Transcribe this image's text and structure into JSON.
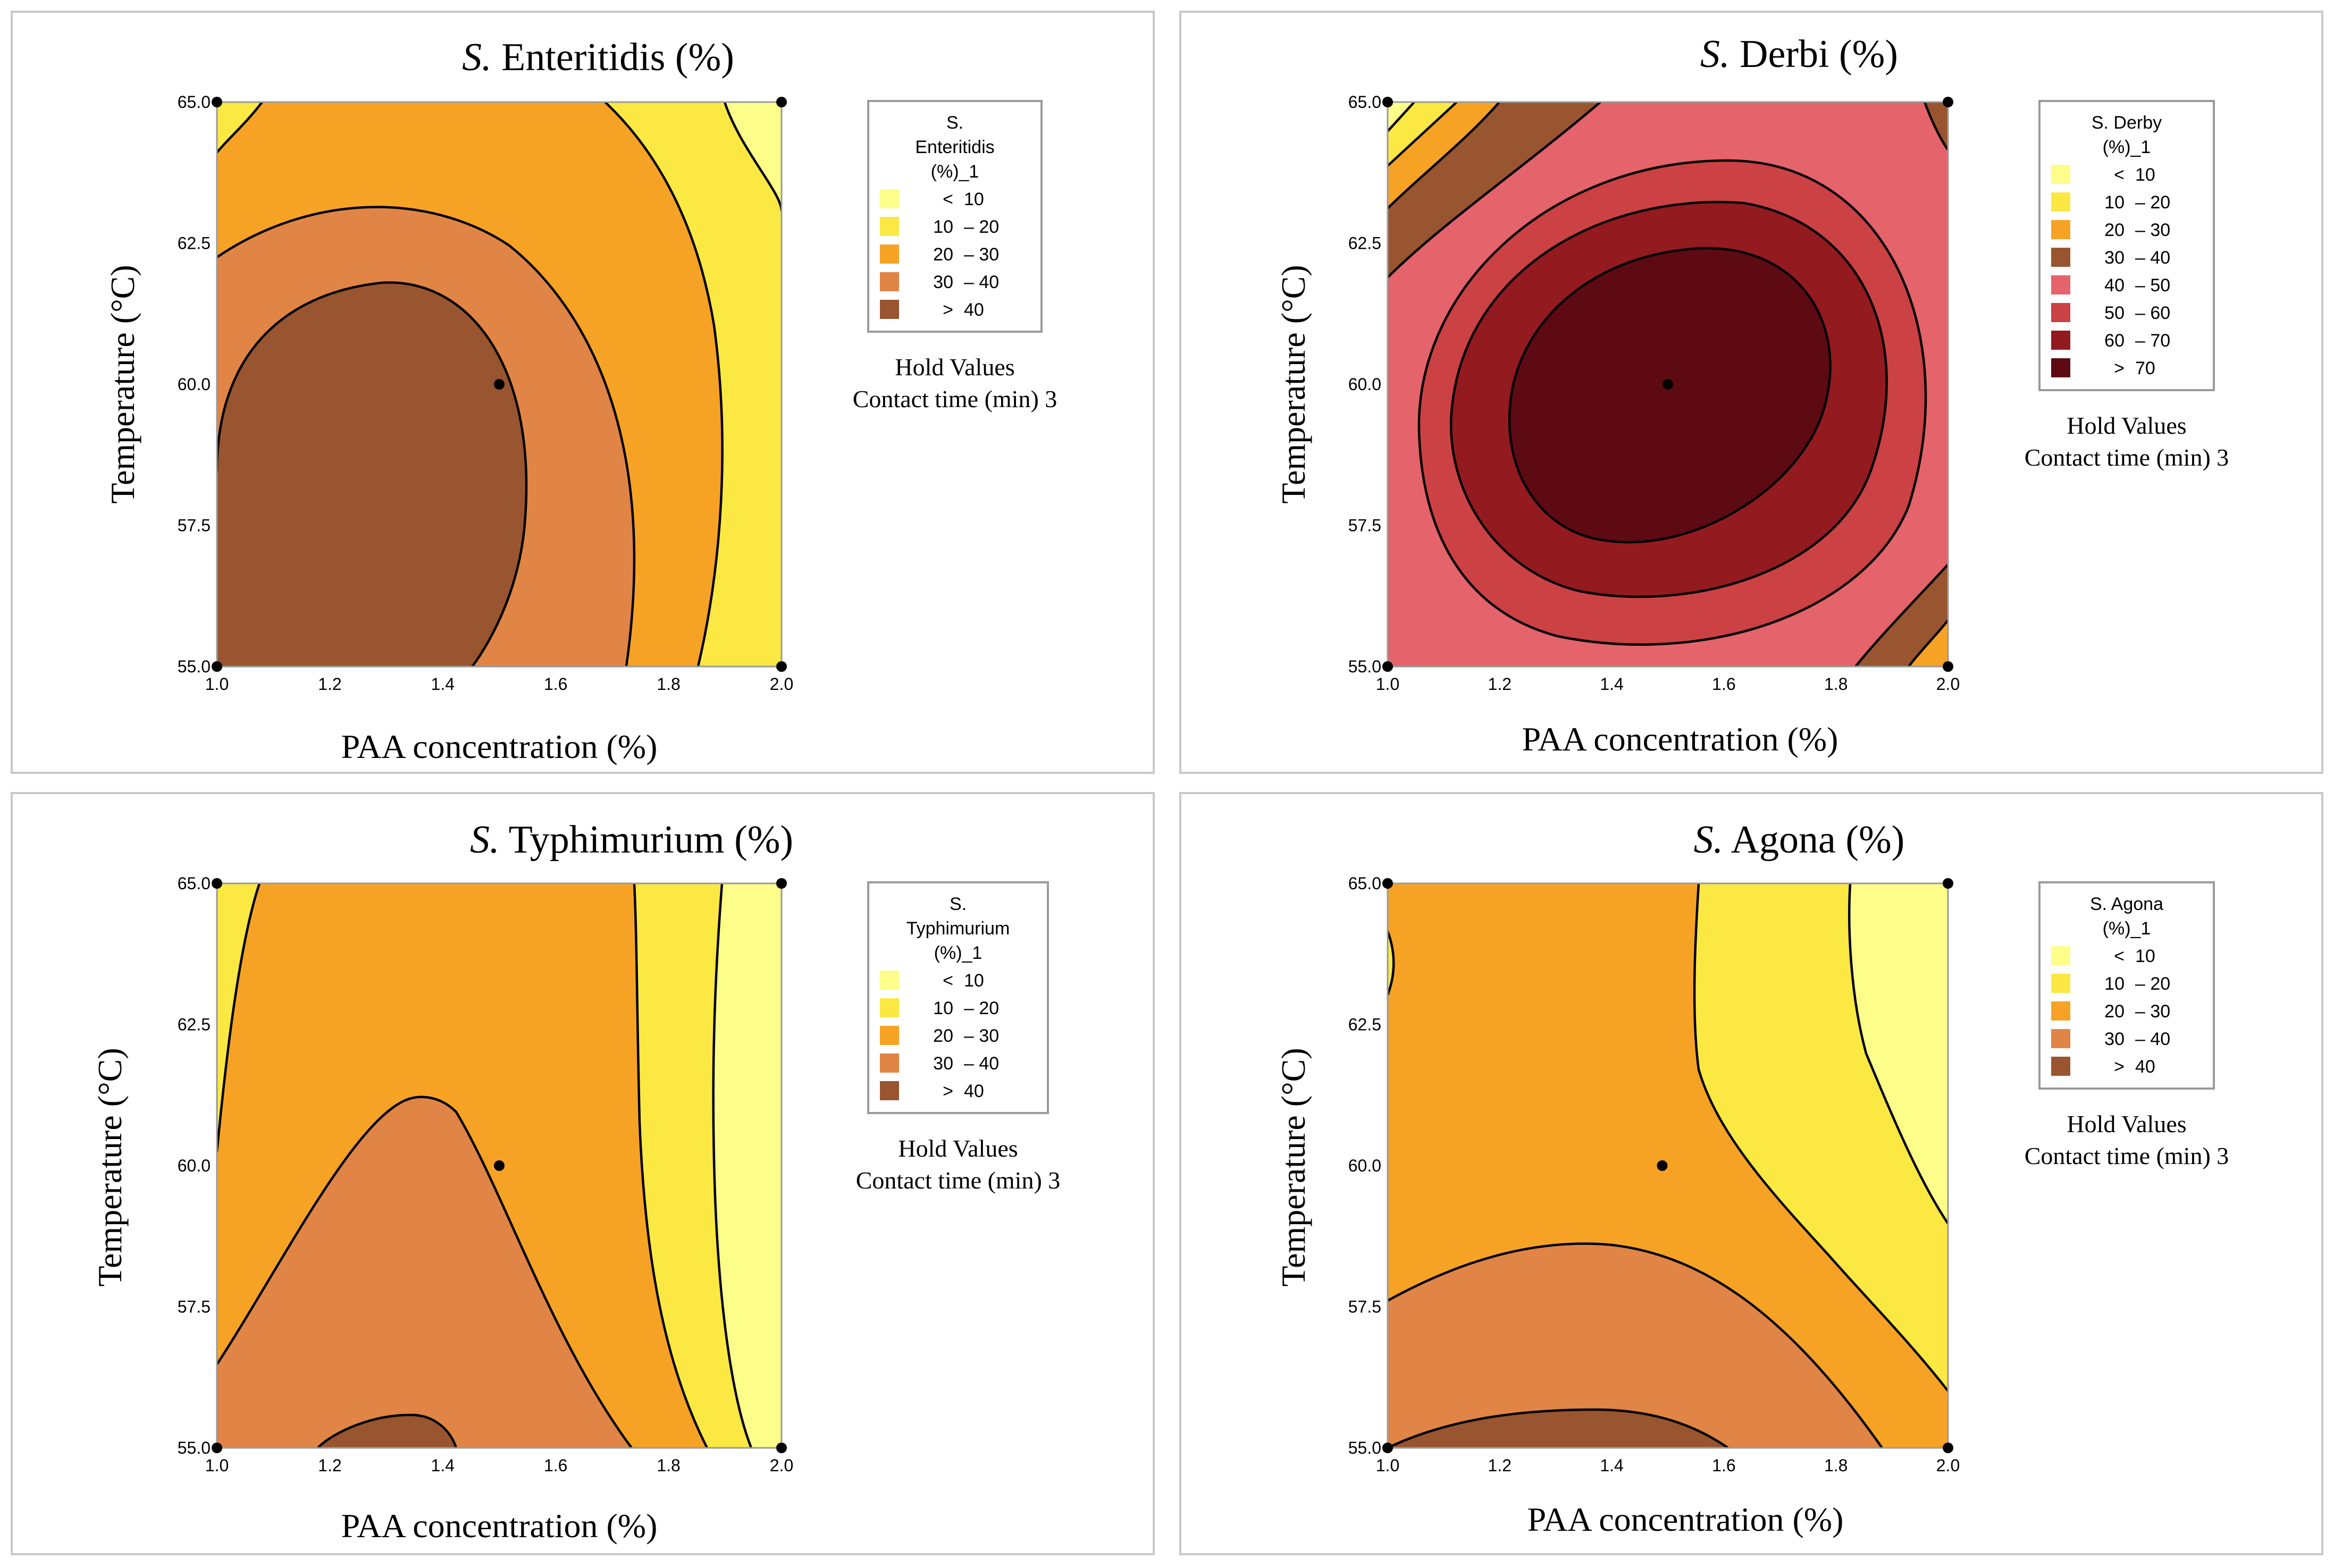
{
  "chart_data": [
    {
      "type": "contour",
      "title_prefix": "S.",
      "title_rest": "Enteritidis  (%)",
      "xlabel": "PAA concentration (%)",
      "ylabel": "Temperature (°C)",
      "xlim": [
        1.0,
        2.0
      ],
      "ylim": [
        55.0,
        65.0
      ],
      "x_ticks": [
        "1.0",
        "1.2",
        "1.4",
        "1.6",
        "1.8",
        "2.0"
      ],
      "y_ticks": [
        "55.0",
        "57.5",
        "60.0",
        "62.5",
        "65.0"
      ],
      "design_points": [
        [
          1.0,
          55.0
        ],
        [
          1.0,
          65.0
        ],
        [
          2.0,
          55.0
        ],
        [
          2.0,
          65.0
        ],
        [
          1.5,
          60.0
        ]
      ],
      "legend_title": [
        "S.",
        "Enteritidis",
        "(%)_1"
      ],
      "legend": [
        {
          "lo": "<",
          "hi": "10",
          "color": "#fdfd8a"
        },
        {
          "lo": "10",
          "hi": "– 20",
          "color": "#fbe843"
        },
        {
          "lo": "20",
          "hi": "– 30",
          "color": "#f6a325"
        },
        {
          "lo": "30",
          "hi": "– 40",
          "color": "#e08545"
        },
        {
          "lo": ">",
          "hi": "40",
          "color": "#99552f"
        }
      ],
      "hold_title": "Hold Values",
      "hold_value": "Contact time (min) 3"
    },
    {
      "type": "contour",
      "title_prefix": "S.",
      "title_rest": "Derbi (%)",
      "xlabel": "PAA concentration (%)",
      "ylabel": "Temperature (°C)",
      "xlim": [
        1.0,
        2.0
      ],
      "ylim": [
        55.0,
        65.0
      ],
      "x_ticks": [
        "1.0",
        "1.2",
        "1.4",
        "1.6",
        "1.8",
        "2.0"
      ],
      "y_ticks": [
        "55.0",
        "57.5",
        "60.0",
        "62.5",
        "65.0"
      ],
      "design_points": [
        [
          1.0,
          55.0
        ],
        [
          1.0,
          65.0
        ],
        [
          2.0,
          55.0
        ],
        [
          2.0,
          65.0
        ],
        [
          1.5,
          60.0
        ]
      ],
      "legend_title": [
        "S. Derby",
        "(%)_1"
      ],
      "legend": [
        {
          "lo": "<",
          "hi": "10",
          "color": "#fdfd8a"
        },
        {
          "lo": "10",
          "hi": "– 20",
          "color": "#fbe843"
        },
        {
          "lo": "20",
          "hi": "– 30",
          "color": "#f6a325"
        },
        {
          "lo": "30",
          "hi": "– 40",
          "color": "#99552f"
        },
        {
          "lo": "40",
          "hi": "– 50",
          "color": "#e5636a"
        },
        {
          "lo": "50",
          "hi": "– 60",
          "color": "#cc4143"
        },
        {
          "lo": "60",
          "hi": "– 70",
          "color": "#931a1f"
        },
        {
          "lo": ">",
          "hi": "70",
          "color": "#5e0a12"
        }
      ],
      "hold_title": "Hold Values",
      "hold_value": "Contact time (min) 3"
    },
    {
      "type": "contour",
      "title_prefix": "S.",
      "title_rest": "Typhimurium  (%)",
      "xlabel": "PAA concentration (%)",
      "ylabel": "Temperature (°C)",
      "xlim": [
        1.0,
        2.0
      ],
      "ylim": [
        55.0,
        65.0
      ],
      "x_ticks": [
        "1.0",
        "1.2",
        "1.4",
        "1.6",
        "1.8",
        "2.0"
      ],
      "y_ticks": [
        "55.0",
        "57.5",
        "60.0",
        "62.5",
        "65.0"
      ],
      "design_points": [
        [
          1.0,
          55.0
        ],
        [
          1.0,
          65.0
        ],
        [
          2.0,
          55.0
        ],
        [
          2.0,
          65.0
        ],
        [
          1.5,
          60.0
        ]
      ],
      "legend_title": [
        "S.",
        "Typhimurium",
        "(%)_1"
      ],
      "legend": [
        {
          "lo": "<",
          "hi": "10",
          "color": "#fdfd8a"
        },
        {
          "lo": "10",
          "hi": "– 20",
          "color": "#fbe843"
        },
        {
          "lo": "20",
          "hi": "– 30",
          "color": "#f6a325"
        },
        {
          "lo": "30",
          "hi": "– 40",
          "color": "#e08545"
        },
        {
          "lo": ">",
          "hi": "40",
          "color": "#99552f"
        }
      ],
      "hold_title": "Hold Values",
      "hold_value": "Contact time (min) 3"
    },
    {
      "type": "contour",
      "title_prefix": "S.",
      "title_rest": "Agona (%)",
      "xlabel": "PAA concentration (%)",
      "ylabel": "Temperature (°C)",
      "xlim": [
        1.0,
        2.0
      ],
      "ylim": [
        55.0,
        65.0
      ],
      "x_ticks": [
        "1.0",
        "1.2",
        "1.4",
        "1.6",
        "1.8",
        "2.0"
      ],
      "y_ticks": [
        "55.0",
        "57.5",
        "60.0",
        "62.5",
        "65.0"
      ],
      "design_points": [
        [
          1.0,
          55.0
        ],
        [
          1.0,
          65.0
        ],
        [
          2.0,
          55.0
        ],
        [
          2.0,
          65.0
        ],
        [
          1.49,
          60.0
        ]
      ],
      "legend_title": [
        "S. Agona",
        "(%)_1"
      ],
      "legend": [
        {
          "lo": "<",
          "hi": "10",
          "color": "#fdfd8a"
        },
        {
          "lo": "10",
          "hi": "– 20",
          "color": "#fbe843"
        },
        {
          "lo": "20",
          "hi": "– 30",
          "color": "#f6a325"
        },
        {
          "lo": "30",
          "hi": "– 40",
          "color": "#e08545"
        },
        {
          "lo": ">",
          "hi": "40",
          "color": "#99552f"
        }
      ],
      "hold_title": "Hold Values",
      "hold_value": "Contact time (min) 3"
    }
  ]
}
